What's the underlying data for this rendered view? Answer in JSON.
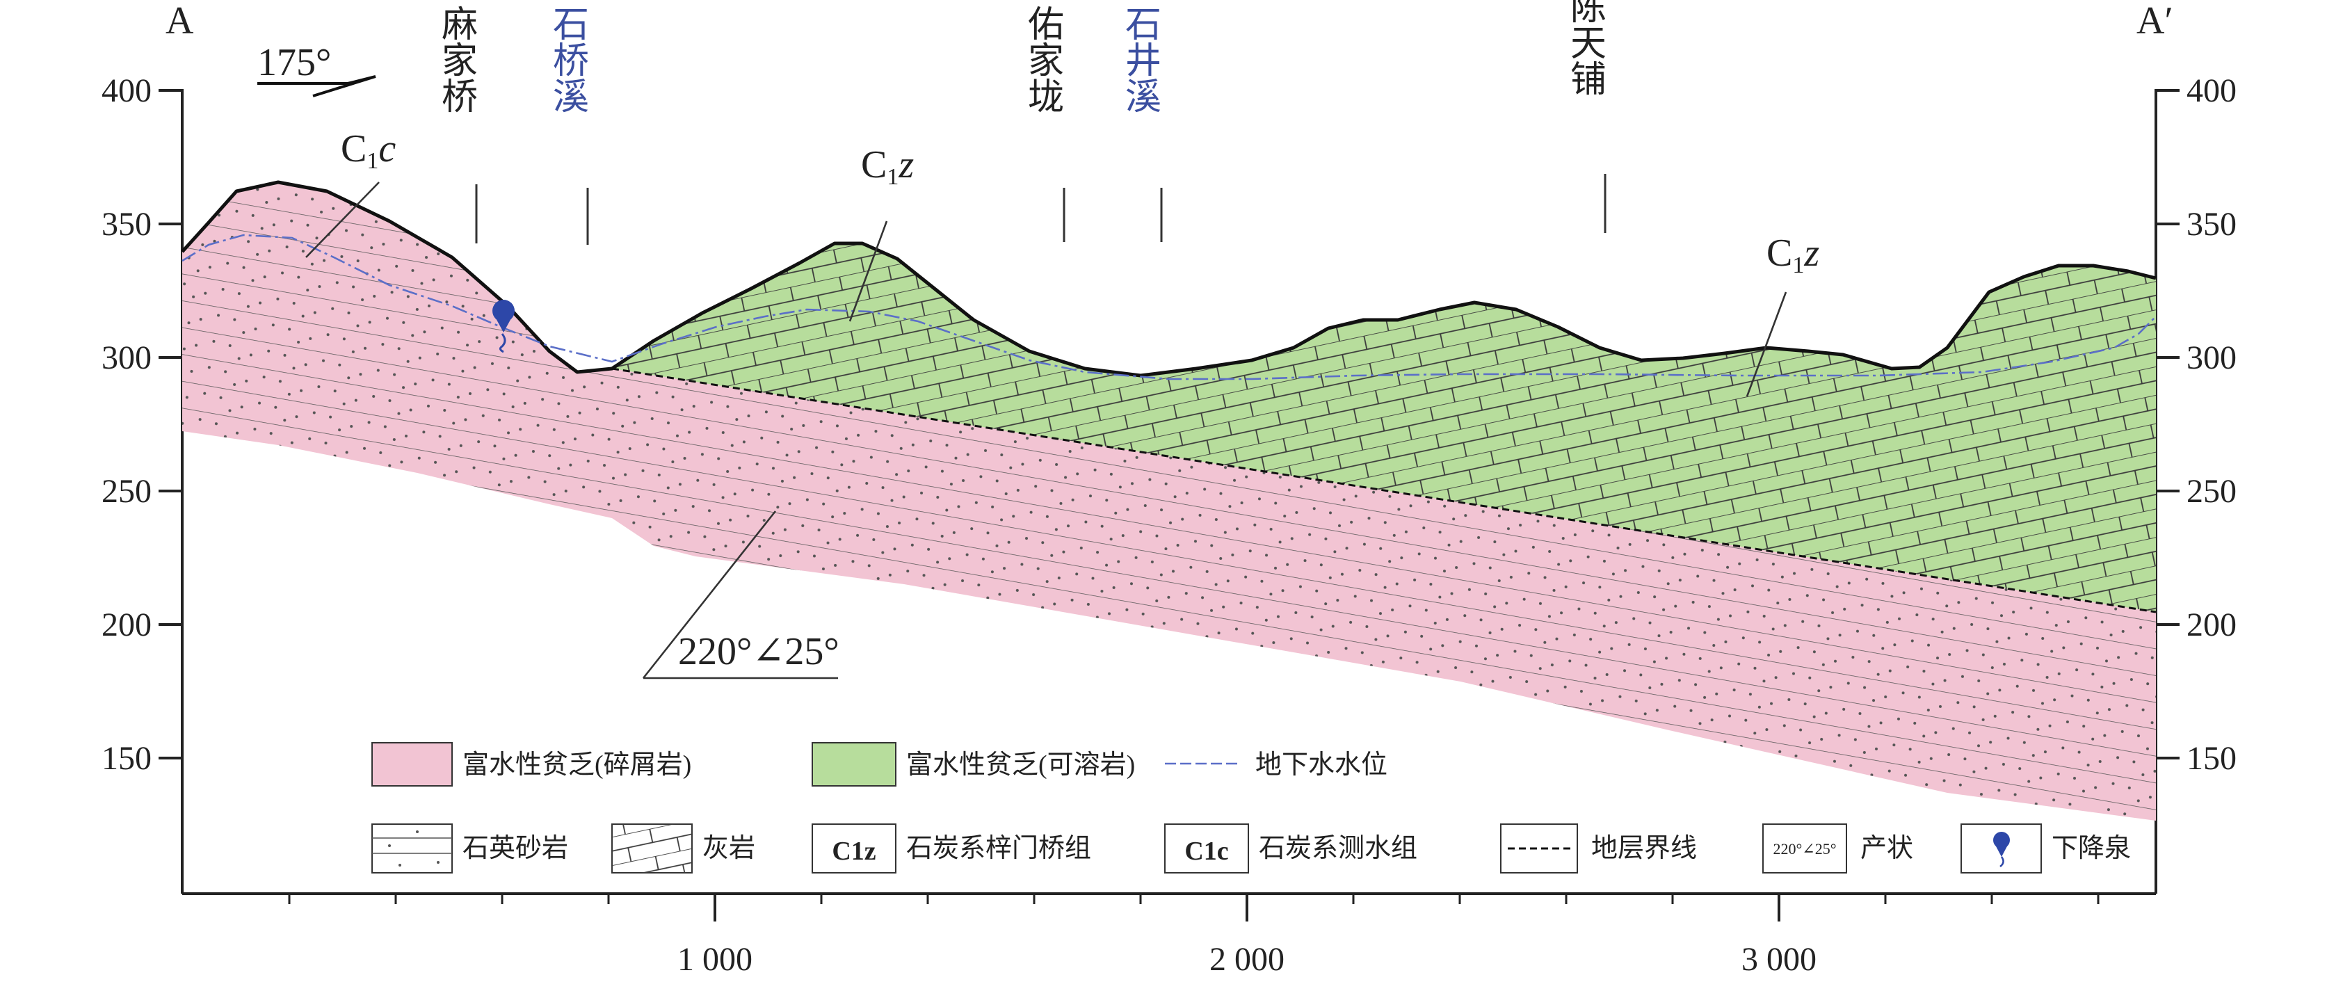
{
  "section": {
    "start_label": "A",
    "end_label": "A′",
    "strike_label": "175°",
    "attitude_label": "220°∠25°"
  },
  "axes": {
    "y_ticks": [
      "400",
      "350",
      "300",
      "250",
      "200",
      "150"
    ],
    "x_ticks": [
      "1 000",
      "2 000",
      "3 000"
    ]
  },
  "places": [
    {
      "name": "麻家桥",
      "type": "village"
    },
    {
      "name": "石桥溪",
      "type": "stream"
    },
    {
      "name": "佑家垅",
      "type": "village"
    },
    {
      "name": "石井溪",
      "type": "stream"
    },
    {
      "name": "陈天铺",
      "type": "village"
    }
  ],
  "formations": {
    "c1c_main": "C",
    "c1c_sub": "1",
    "c1c_letter": "c",
    "c1z_main": "C",
    "c1z_sub": "1",
    "c1z_letter": "z"
  },
  "legend": {
    "clastic": "富水性贫乏(碎屑岩)",
    "karst": "富水性贫乏(可溶岩)",
    "water_table": "地下水水位",
    "sandstone": "石英砂岩",
    "limestone": "灰岩",
    "c1z_box": "C1z",
    "c1z": "石炭系梓门桥组",
    "c1c_box": "C1c",
    "c1c": "石炭系测水组",
    "boundary": "地层界线",
    "attitude_box": "220°∠25°",
    "attitude": "产状",
    "spring": "下降泉"
  },
  "colors": {
    "clastic_fill": "#f2c4d3",
    "karst_fill": "#b7dd9c",
    "water_table": "#5b6fc8",
    "spring": "#2d47a8"
  }
}
